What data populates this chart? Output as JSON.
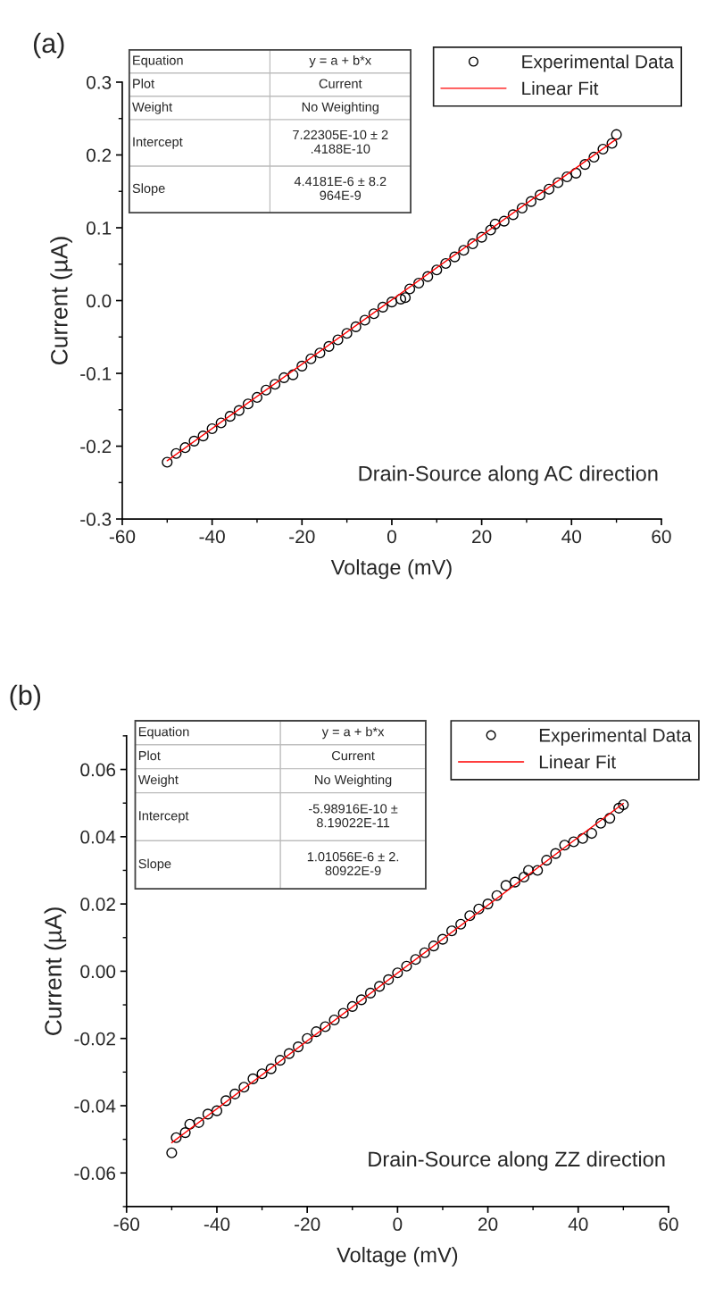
{
  "chart_data": [
    {
      "type": "scatter",
      "xlabel": "Voltage (mV)",
      "ylabel": "Current (µA)",
      "xlim": [
        -60,
        60
      ],
      "xticks": [
        -60,
        -40,
        -20,
        0,
        20,
        40,
        60
      ],
      "ylim": [
        -0.3,
        0.3
      ],
      "yticks": [
        {
          "value": -0.3,
          "label": "-0.3"
        },
        {
          "value": -0.2,
          "label": "-0.2"
        },
        {
          "value": -0.1,
          "label": "-0.1"
        },
        {
          "value": 0.0,
          "label": "0.0"
        },
        {
          "value": 0.1,
          "label": "0.1"
        },
        {
          "value": 0.2,
          "label": "0.2"
        },
        {
          "value": 0.3,
          "label": "0.3"
        }
      ],
      "grid": false,
      "legend": "top right",
      "annotations": [
        "(a)",
        "Drain-Source along AC direction",
        "Equation",
        "y = a + b*x",
        "Plot",
        "Current",
        "Weight",
        "No Weighting",
        "Intercept",
        "7.22305E-10 ± 2\n.4188E-10",
        "Slope",
        "4.4181E-6 ± 8.2\n964E-9"
      ],
      "series": [
        {
          "name": "Experimental Data",
          "marker": "circle",
          "color": "#000000",
          "x": [
            -50,
            -48,
            -46,
            -44,
            -42,
            -40,
            -38,
            -36,
            -34,
            -32,
            -30,
            -28,
            -26,
            -24,
            -22,
            -20,
            -18,
            -16,
            -14,
            -12,
            -10,
            -8,
            -6,
            -4,
            -2,
            0,
            2,
            3,
            4,
            6,
            8,
            10,
            12,
            14,
            16,
            18,
            20,
            22,
            23,
            25,
            27,
            29,
            31,
            33,
            35,
            37,
            39,
            41,
            43,
            45,
            47,
            49,
            50
          ],
          "values": [
            -0.222,
            -0.21,
            -0.202,
            -0.193,
            -0.186,
            -0.176,
            -0.168,
            -0.159,
            -0.151,
            -0.142,
            -0.133,
            -0.123,
            -0.115,
            -0.106,
            -0.102,
            -0.09,
            -0.08,
            -0.072,
            -0.063,
            -0.054,
            -0.045,
            -0.036,
            -0.027,
            -0.018,
            -0.009,
            -0.002,
            0.002,
            0.004,
            0.016,
            0.024,
            0.033,
            0.042,
            0.051,
            0.06,
            0.069,
            0.078,
            0.087,
            0.097,
            0.105,
            0.109,
            0.118,
            0.127,
            0.136,
            0.145,
            0.153,
            0.162,
            0.17,
            0.175,
            0.187,
            0.197,
            0.208,
            0.216,
            0.228
          ]
        },
        {
          "name": "Linear Fit",
          "type": "line",
          "color": "#ff0000",
          "x": [
            -50,
            50
          ],
          "values": [
            -0.22,
            0.222
          ]
        }
      ]
    },
    {
      "type": "scatter",
      "xlabel": "Voltage (mV)",
      "ylabel": "Current (µA)",
      "xlim": [
        -60,
        60
      ],
      "xticks": [
        -60,
        -40,
        -20,
        0,
        20,
        40,
        60
      ],
      "ylim": [
        -0.07,
        0.07
      ],
      "yticks": [
        {
          "value": -0.06,
          "label": "-0.06"
        },
        {
          "value": -0.04,
          "label": "-0.04"
        },
        {
          "value": -0.02,
          "label": "-0.02"
        },
        {
          "value": 0.0,
          "label": "0.00"
        },
        {
          "value": 0.02,
          "label": "0.02"
        },
        {
          "value": 0.04,
          "label": "0.04"
        },
        {
          "value": 0.06,
          "label": "0.06"
        }
      ],
      "grid": false,
      "legend": "top right",
      "annotations": [
        "(b)",
        "Drain-Source along ZZ direction",
        "Equation",
        "y = a + b*x",
        "Plot",
        "Current",
        "Weight",
        "No Weighting",
        "Intercept",
        "-5.98916E-10 ±\n8.19022E-11",
        "Slope",
        "1.01056E-6 ± 2.\n80922E-9"
      ],
      "series": [
        {
          "name": "Experimental Data",
          "marker": "circle",
          "color": "#000000",
          "x": [
            -50,
            -49,
            -47,
            -46,
            -44,
            -42,
            -40,
            -38,
            -36,
            -34,
            -32,
            -30,
            -28,
            -26,
            -24,
            -22,
            -20,
            -18,
            -16,
            -14,
            -12,
            -10,
            -8,
            -6,
            -4,
            -2,
            0,
            2,
            4,
            6,
            8,
            10,
            12,
            14,
            16,
            18,
            20,
            22,
            24,
            26,
            28,
            29,
            31,
            33,
            35,
            37,
            39,
            41,
            43,
            45,
            47,
            49,
            50
          ],
          "values": [
            -0.054,
            -0.0495,
            -0.048,
            -0.0455,
            -0.045,
            -0.0425,
            -0.0415,
            -0.0385,
            -0.0365,
            -0.0345,
            -0.032,
            -0.0305,
            -0.029,
            -0.0265,
            -0.0245,
            -0.0225,
            -0.02,
            -0.018,
            -0.0165,
            -0.0145,
            -0.0125,
            -0.0105,
            -0.0085,
            -0.0065,
            -0.0045,
            -0.0025,
            -0.0005,
            0.0015,
            0.0035,
            0.0055,
            0.0075,
            0.0095,
            0.012,
            0.014,
            0.0165,
            0.0185,
            0.02,
            0.0225,
            0.0255,
            0.0265,
            0.028,
            0.03,
            0.03,
            0.033,
            0.035,
            0.0375,
            0.0385,
            0.0395,
            0.041,
            0.044,
            0.0455,
            0.0485,
            0.0495
          ]
        },
        {
          "name": "Linear Fit",
          "type": "line",
          "color": "#ff0000",
          "x": [
            -50,
            50
          ],
          "values": [
            -0.051,
            0.0499
          ]
        }
      ]
    }
  ]
}
